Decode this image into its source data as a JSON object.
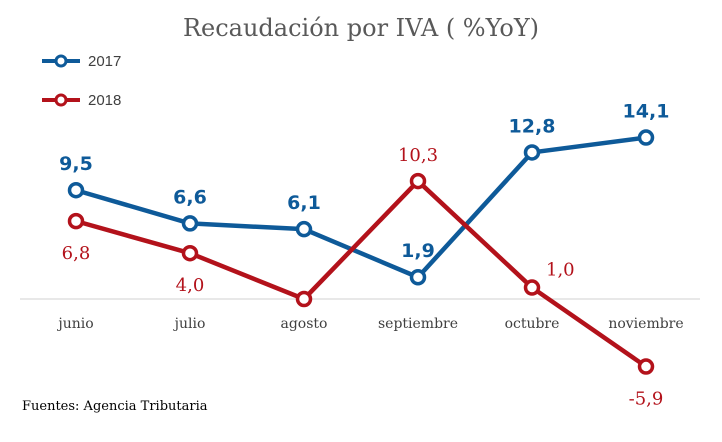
{
  "chart_data": {
    "type": "line",
    "title": "Recaudación por IVA ( %YoY)",
    "categories": [
      "junio",
      "julio",
      "agosto",
      "septiembre",
      "octubre",
      "noviembre"
    ],
    "series": [
      {
        "name": "2017",
        "color": "#0e5a99",
        "values": [
          9.5,
          6.6,
          6.1,
          1.9,
          12.8,
          14.1
        ],
        "labels": [
          "9,5",
          "6,6",
          "6,1",
          "1,9",
          "12,8",
          "14,1"
        ]
      },
      {
        "name": "2018",
        "color": "#b3121b",
        "values": [
          6.8,
          4.0,
          0.0,
          10.3,
          1.0,
          -5.9
        ],
        "labels": [
          "6,8",
          "4,0",
          "",
          "10,3",
          "1,0",
          "-5,9"
        ]
      }
    ],
    "legend_position": "top-left",
    "grid": false,
    "source": "Fuentes: Agencia Tributaria"
  }
}
